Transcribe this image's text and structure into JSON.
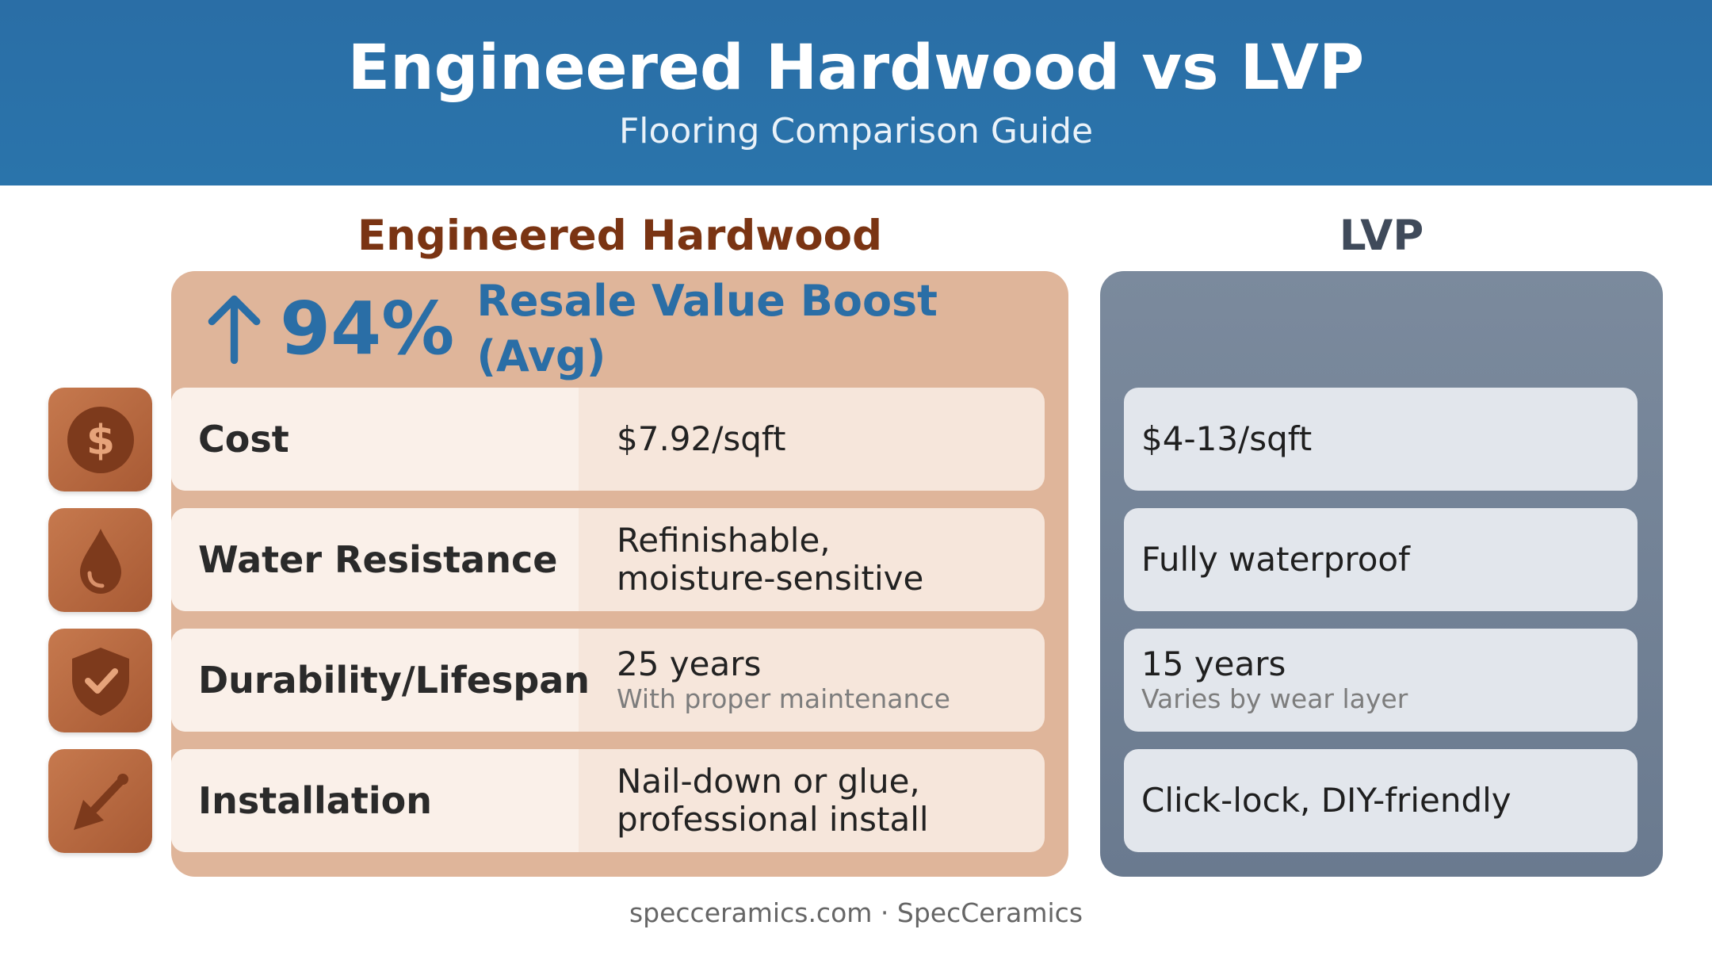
{
  "header": {
    "title": "Engineered Hardwood vs LVP",
    "subtitle": "Flooring Comparison Guide"
  },
  "columns": {
    "hardwood": "Engineered Hardwood",
    "lvp": "LVP"
  },
  "highlight": {
    "value": "94%",
    "label": "Resale Value Boost (Avg)",
    "icon": "arrow-up-icon"
  },
  "rows": [
    {
      "icon": "dollar-icon",
      "label": "Cost",
      "hardwood": "$7.92/sqft",
      "hardwood_note": "",
      "lvp": "$4-13/sqft",
      "lvp_note": ""
    },
    {
      "icon": "water-drop-icon",
      "label": "Water Resistance",
      "hardwood": "Refinishable,\nmoisture-sensitive",
      "hardwood_note": "",
      "lvp": "Fully waterproof",
      "lvp_note": ""
    },
    {
      "icon": "shield-check-icon",
      "label": "Durability/Lifespan",
      "hardwood": "25 years",
      "hardwood_note": "With proper maintenance",
      "lvp": "15 years",
      "lvp_note": "Varies by wear layer"
    },
    {
      "icon": "trowel-icon",
      "label": "Installation",
      "hardwood": "Nail-down or glue,\nprofessional install",
      "hardwood_note": "",
      "lvp": "Click-lock, DIY-friendly",
      "lvp_note": ""
    }
  ],
  "colors": {
    "header": "#2a6ea6",
    "hardwood_heading": "#7a3413",
    "lvp_heading": "#3f4a5a",
    "hardwood_panel": "#dfb59a",
    "lvp_panel": "#72829a",
    "icon_tile": "#b8683f"
  },
  "footer": "specceramics.com · SpecCeramics"
}
